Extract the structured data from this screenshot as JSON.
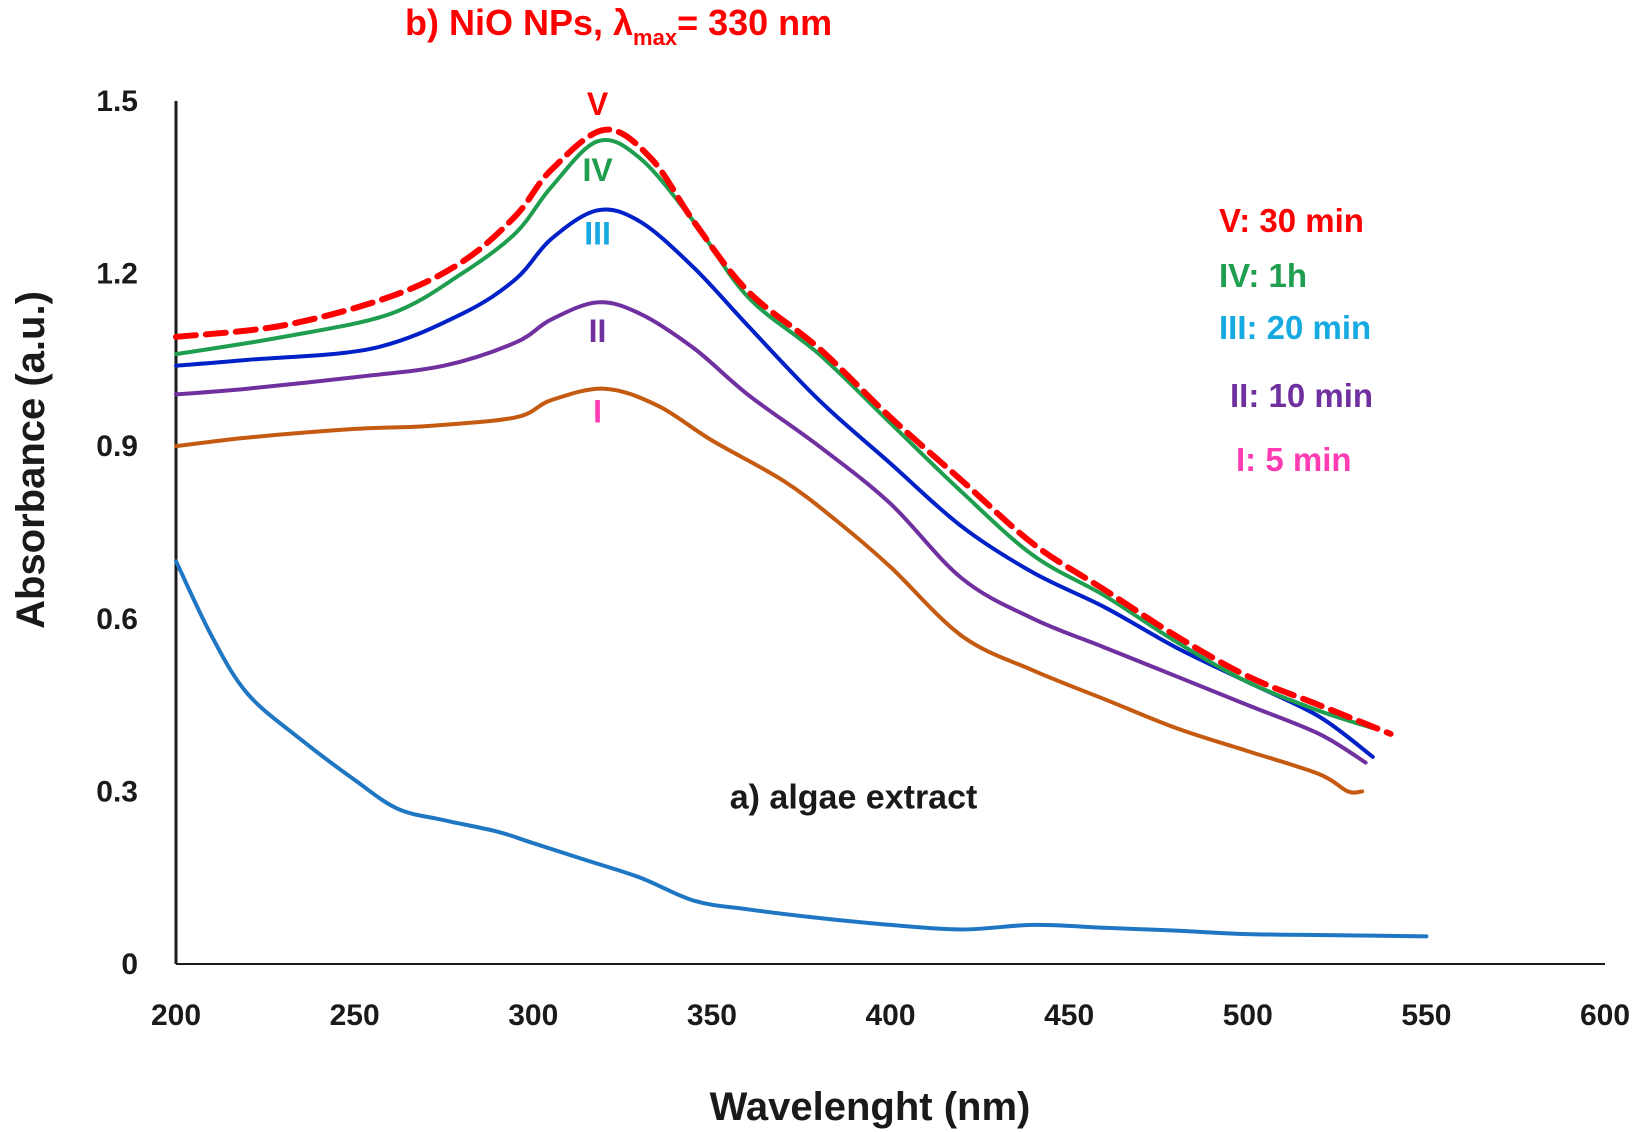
{
  "chart_data": {
    "type": "line",
    "title_parts": {
      "prefix": "b) NiO NPs, λ",
      "subscript": "max",
      "suffix": "= 330 nm"
    },
    "title_color": "#ff0000",
    "xlabel": "Wavelenght (nm)",
    "ylabel": "Absorbance (a.u.)",
    "xlim": [
      200,
      600
    ],
    "ylim": [
      0,
      1.5
    ],
    "x_ticks": [
      "200",
      "250",
      "300",
      "350",
      "400",
      "450",
      "500",
      "550",
      "600"
    ],
    "y_ticks": [
      "0",
      "0.3",
      "0.6",
      "0.9",
      "1.2",
      "1.5"
    ],
    "grid": false,
    "series": [
      {
        "id": "algae",
        "name": "a) algae extract",
        "color": "#1f77c4",
        "dashed": false,
        "x": [
          200,
          210,
          220,
          235,
          250,
          262,
          275,
          290,
          300,
          315,
          330,
          345,
          360,
          380,
          400,
          420,
          440,
          460,
          480,
          500,
          525,
          550
        ],
        "y": [
          0.7,
          0.57,
          0.47,
          0.39,
          0.32,
          0.27,
          0.25,
          0.23,
          0.21,
          0.18,
          0.15,
          0.11,
          0.095,
          0.08,
          0.068,
          0.06,
          0.068,
          0.063,
          0.058,
          0.052,
          0.05,
          0.048
        ]
      },
      {
        "id": "s1",
        "name": "I: 5 min",
        "color": "#c55a11",
        "dashed": false,
        "x": [
          200,
          220,
          250,
          270,
          295,
          305,
          320,
          335,
          350,
          370,
          385,
          400,
          420,
          440,
          460,
          480,
          500,
          520,
          528,
          532
        ],
        "y": [
          0.9,
          0.915,
          0.93,
          0.935,
          0.95,
          0.98,
          1.0,
          0.97,
          0.91,
          0.84,
          0.77,
          0.69,
          0.57,
          0.51,
          0.46,
          0.41,
          0.37,
          0.33,
          0.3,
          0.3
        ]
      },
      {
        "id": "s2",
        "name": "II: 10 min",
        "color": "#7030a0",
        "dashed": false,
        "x": [
          200,
          220,
          250,
          275,
          295,
          305,
          318,
          330,
          345,
          360,
          380,
          400,
          420,
          440,
          460,
          480,
          500,
          520,
          533
        ],
        "y": [
          0.99,
          1.0,
          1.02,
          1.04,
          1.08,
          1.12,
          1.15,
          1.13,
          1.07,
          0.99,
          0.9,
          0.8,
          0.67,
          0.6,
          0.55,
          0.5,
          0.45,
          0.4,
          0.35
        ]
      },
      {
        "id": "s3",
        "name": "III: 20 min",
        "color": "#0020c8",
        "dashed": false,
        "x": [
          200,
          220,
          255,
          280,
          295,
          305,
          318,
          330,
          345,
          360,
          380,
          400,
          420,
          440,
          460,
          480,
          500,
          520,
          535
        ],
        "y": [
          1.04,
          1.05,
          1.07,
          1.13,
          1.19,
          1.26,
          1.31,
          1.29,
          1.21,
          1.11,
          0.98,
          0.87,
          0.76,
          0.68,
          0.62,
          0.55,
          0.49,
          0.43,
          0.36
        ]
      },
      {
        "id": "s4",
        "name": "IV: 1h",
        "color": "#1e9e4e",
        "dashed": false,
        "x": [
          200,
          230,
          260,
          280,
          295,
          305,
          318,
          330,
          345,
          360,
          380,
          400,
          420,
          440,
          460,
          480,
          500,
          520,
          535
        ],
        "y": [
          1.06,
          1.09,
          1.13,
          1.2,
          1.27,
          1.35,
          1.43,
          1.4,
          1.29,
          1.16,
          1.06,
          0.94,
          0.82,
          0.71,
          0.64,
          0.56,
          0.49,
          0.44,
          0.41
        ]
      },
      {
        "id": "s5",
        "name": "V: 30 min",
        "color": "#ff0000",
        "dashed": true,
        "x": [
          200,
          230,
          260,
          280,
          295,
          305,
          320,
          333,
          345,
          360,
          380,
          400,
          420,
          440,
          460,
          480,
          500,
          520,
          540
        ],
        "y": [
          1.09,
          1.11,
          1.16,
          1.22,
          1.3,
          1.38,
          1.45,
          1.4,
          1.29,
          1.17,
          1.07,
          0.95,
          0.84,
          0.73,
          0.65,
          0.57,
          0.5,
          0.45,
          0.4
        ]
      }
    ],
    "curve_labels": [
      {
        "text": "V",
        "color": "#ff0000",
        "x": 318,
        "y": 1.495
      },
      {
        "text": "IV",
        "color": "#1e9e4e",
        "x": 318,
        "y": 1.38
      },
      {
        "text": "III",
        "color": "#17a9e1",
        "x": 318,
        "y": 1.27
      },
      {
        "text": "II",
        "color": "#7030a0",
        "x": 318,
        "y": 1.1
      },
      {
        "text": "I",
        "color": "#ff3cb4",
        "x": 318,
        "y": 0.96
      }
    ],
    "legend": [
      {
        "text": "V: 30 min",
        "color": "#ff0000"
      },
      {
        "text": "IV: 1h",
        "color": "#1e9e4e"
      },
      {
        "text": "III: 20 min",
        "color": "#17a9e1"
      },
      {
        "text": "II: 10 min",
        "color": "#7030a0"
      },
      {
        "text": "I: 5 min",
        "color": "#ff3cb4"
      }
    ],
    "legend_position": "right",
    "annotation": {
      "text": "a) algae extract",
      "x": 355,
      "y": 0.27
    }
  }
}
